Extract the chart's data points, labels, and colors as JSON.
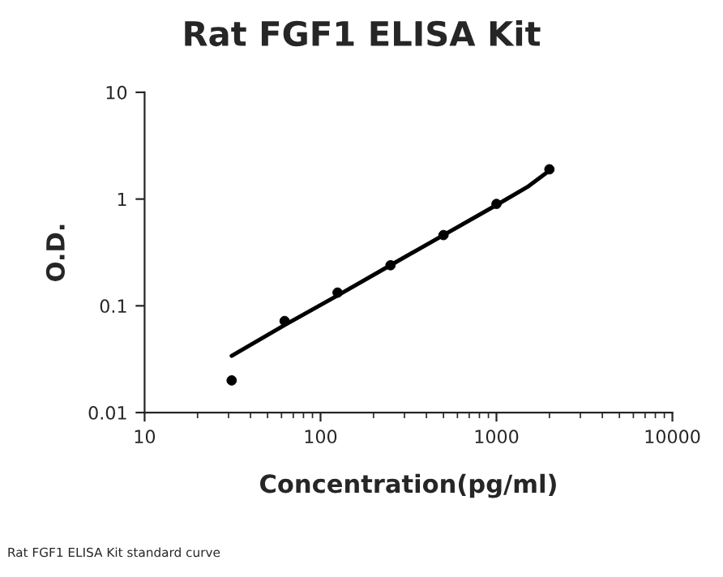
{
  "chart_data": {
    "type": "scatter",
    "title": "Rat FGF1 ELISA Kit",
    "xlabel": "Concentration(pg/ml)",
    "ylabel": "O.D.",
    "log": "xy",
    "xlim": [
      10,
      10000
    ],
    "xticks": [
      10,
      100,
      1000,
      10000
    ],
    "ylim": [
      0.01,
      10
    ],
    "yticks": [
      0.01,
      0.1,
      1,
      10
    ],
    "grid": false,
    "legend": false,
    "annotations": [
      "Rat FGF1 ELISA Kit standard curve"
    ],
    "series": [
      {
        "color": "#000000",
        "marker": "circle",
        "x": [
          31.25,
          62.5,
          125,
          250,
          500,
          1000,
          2000
        ],
        "values": [
          0.02,
          0.072,
          0.133,
          0.24,
          0.46,
          0.9,
          1.9
        ]
      },
      {
        "type": "line",
        "color": "#000000",
        "line_style": "solid",
        "x": [
          31.25,
          62.5,
          125,
          250,
          500,
          1000,
          1500,
          2000
        ],
        "values": [
          0.034,
          0.066,
          0.125,
          0.24,
          0.46,
          0.88,
          1.3,
          1.85
        ]
      }
    ]
  }
}
